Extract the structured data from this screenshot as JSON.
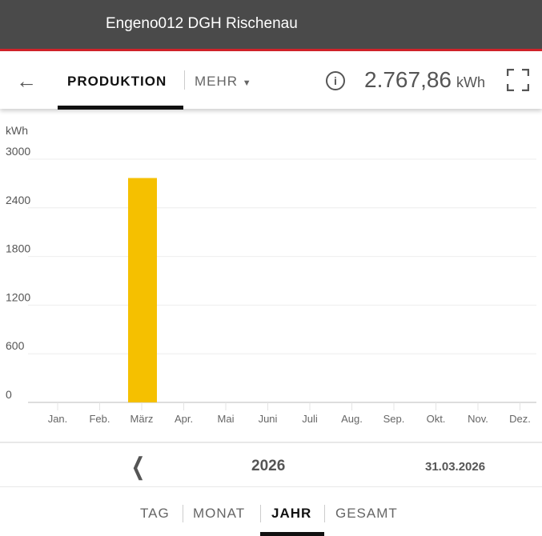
{
  "header": {
    "title": "Engeno012 DGH Rischenau"
  },
  "nav": {
    "tab_active": "PRODUKTION",
    "tab_more": "MEHR",
    "total_value": "2.767,86",
    "total_unit": "kWh"
  },
  "colors": {
    "bar": "#f5c000",
    "header": "#4a4a4a",
    "accent": "#d2232a"
  },
  "chart_data": {
    "type": "bar",
    "ylabel": "kWh",
    "ylim": [
      0,
      3000
    ],
    "yticks": [
      0,
      600,
      1200,
      1800,
      2400,
      3000
    ],
    "categories": [
      "Jan.",
      "Feb.",
      "März",
      "Apr.",
      "Mai",
      "Juni",
      "Juli",
      "Aug.",
      "Sep.",
      "Okt.",
      "Nov.",
      "Dez."
    ],
    "values": [
      0,
      0,
      2767.86,
      0,
      0,
      0,
      0,
      0,
      0,
      0,
      0,
      0
    ],
    "grid": true
  },
  "period": {
    "year": "2026",
    "date": "31.03.2026"
  },
  "period_tabs": [
    "TAG",
    "MONAT",
    "JAHR",
    "GESAMT"
  ]
}
